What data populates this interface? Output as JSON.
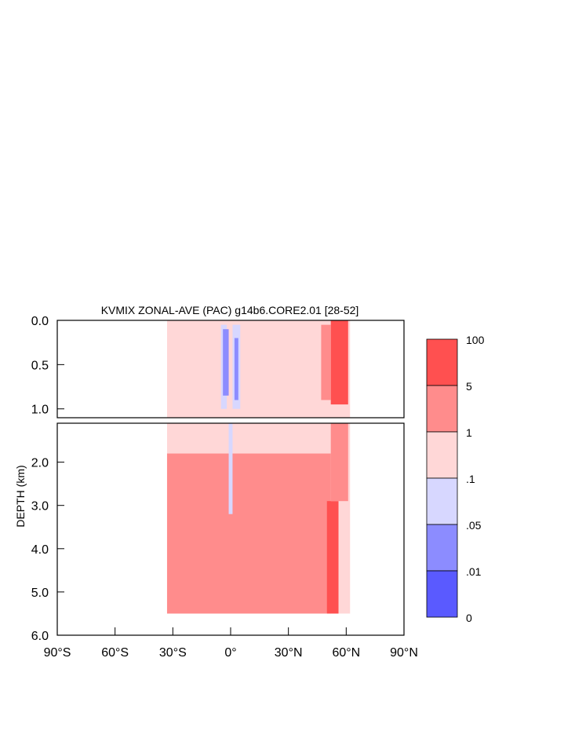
{
  "chart_data": {
    "type": "heatmap",
    "title": "KVMIX ZONAL-AVE (PAC) g14b6.CORE2.01 [28-52]",
    "ylabel": "DEPTH (km)",
    "xlabel": "",
    "xlim": [
      -90,
      90
    ],
    "upper_panel_ylim": [
      0.0,
      1.1
    ],
    "lower_panel_ylim": [
      1.1,
      6.0
    ],
    "x_ticks": [
      {
        "value": -90,
        "label": "90°S"
      },
      {
        "value": -60,
        "label": "60°S"
      },
      {
        "value": -30,
        "label": "30°S"
      },
      {
        "value": 0,
        "label": "0°"
      },
      {
        "value": 30,
        "label": "30°N"
      },
      {
        "value": 60,
        "label": "60°N"
      },
      {
        "value": 90,
        "label": "90°N"
      }
    ],
    "upper_y_ticks": [
      {
        "value": 0.0,
        "label": "0.0"
      },
      {
        "value": 0.5,
        "label": "0.5"
      },
      {
        "value": 1.0,
        "label": "1.0"
      }
    ],
    "lower_y_ticks": [
      {
        "value": 2.0,
        "label": "2.0"
      },
      {
        "value": 3.0,
        "label": "3.0"
      },
      {
        "value": 4.0,
        "label": "4.0"
      },
      {
        "value": 5.0,
        "label": "5.0"
      },
      {
        "value": 6.0,
        "label": "6.0"
      }
    ],
    "colorbar": {
      "boundary_labels": [
        "100",
        "5",
        "1",
        ".1",
        ".05",
        ".01",
        "0"
      ],
      "colors": [
        "#ff5050",
        "#ff8c8c",
        "#ffd7d7",
        "#d7d7ff",
        "#8c8cff",
        "#5a5aff"
      ]
    },
    "color_classes": {
      "lt_0.05": "#8c8cff",
      "0.05_to_0.1": "#d7d7ff",
      "0.1_to_1": "#ffd7d7",
      "1_to_5": "#ff8c8c",
      "5_to_100": "#ff5050"
    },
    "regions": [
      {
        "class": "0.1_to_1",
        "lat": [
          -33,
          62
        ],
        "depth": [
          0.0,
          5.5
        ]
      },
      {
        "class": "5_to_100",
        "lat": [
          52,
          61
        ],
        "depth": [
          0.0,
          0.95
        ]
      },
      {
        "class": "1_to_5",
        "lat": [
          47,
          52
        ],
        "depth": [
          0.05,
          0.9
        ]
      },
      {
        "class": "0.05_to_0.1",
        "lat": [
          -5,
          -2
        ],
        "depth": [
          0.05,
          1.0
        ]
      },
      {
        "class": "lt_0.05",
        "lat": [
          -4,
          -1
        ],
        "depth": [
          0.1,
          0.85
        ]
      },
      {
        "class": "0.05_to_0.1",
        "lat": [
          1,
          5
        ],
        "depth": [
          0.05,
          1.0
        ]
      },
      {
        "class": "lt_0.05",
        "lat": [
          2,
          4
        ],
        "depth": [
          0.2,
          0.9
        ]
      },
      {
        "class": "1_to_5",
        "lat": [
          -33,
          52
        ],
        "depth": [
          1.8,
          5.5
        ]
      },
      {
        "class": "5_to_100",
        "lat": [
          50,
          56
        ],
        "depth": [
          2.9,
          5.5
        ]
      },
      {
        "class": "1_to_5",
        "lat": [
          52,
          61
        ],
        "depth": [
          1.1,
          2.9
        ]
      },
      {
        "class": "0.05_to_0.1",
        "lat": [
          -1,
          1
        ],
        "depth": [
          1.1,
          3.2
        ]
      }
    ]
  }
}
